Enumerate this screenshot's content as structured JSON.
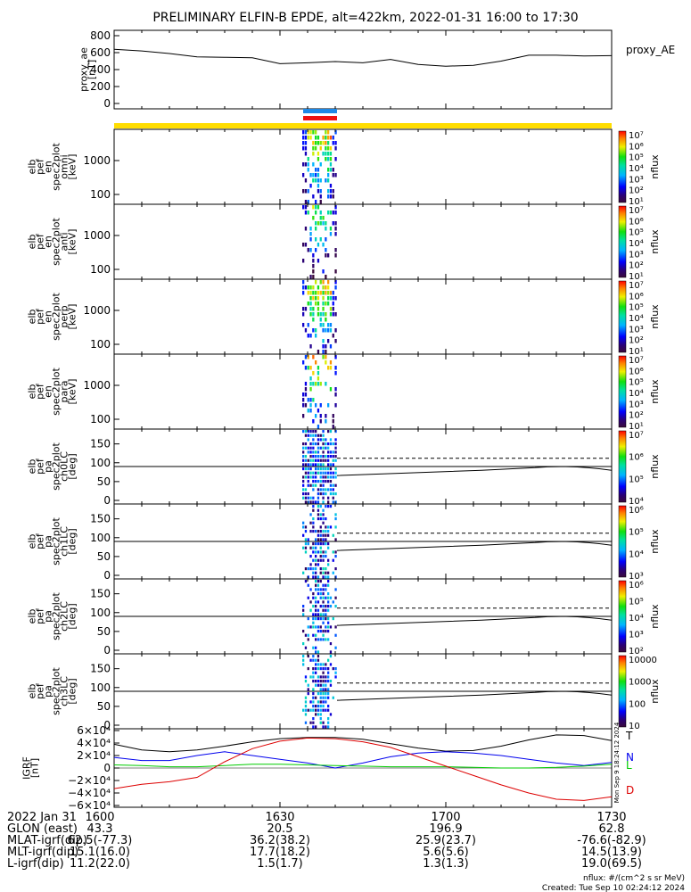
{
  "title": "PRELIMINARY ELFIN-B EPDE, alt=422km, 2022-01-31 16:00 to 17:30",
  "chart_data": [
    {
      "type": "line",
      "ylabel": [
        "proxy_ae",
        "[nT]"
      ],
      "legend": "proxy_AE",
      "ylim": [
        0,
        800
      ],
      "y_ticks": [
        "800",
        "600",
        "400",
        "200",
        "0"
      ],
      "x_minutes": [
        0,
        5,
        10,
        15,
        20,
        25,
        30,
        35,
        40,
        45,
        50,
        55,
        60,
        65,
        70,
        75,
        80,
        85,
        90
      ],
      "values": [
        640,
        620,
        590,
        550,
        545,
        540,
        470,
        480,
        495,
        480,
        520,
        460,
        440,
        450,
        500,
        570,
        570,
        560,
        565
      ]
    },
    {
      "type": "heatmap",
      "ylabel": [
        "elb",
        "pef",
        "en",
        "spec2plot",
        "omni",
        "[keV]"
      ],
      "y_scale": "log",
      "y_ticks": [
        "1000",
        "100"
      ],
      "colorbar_ticks": [
        "10^7",
        "10^6",
        "10^5",
        "10^4",
        "10^3",
        "10^2",
        "10^1"
      ],
      "colorbar_label": "nflux"
    },
    {
      "type": "heatmap",
      "ylabel": [
        "elb",
        "pef",
        "en",
        "spec2plot",
        "anti",
        "[keV]"
      ],
      "y_scale": "log",
      "y_ticks": [
        "1000",
        "100"
      ],
      "colorbar_ticks": [
        "10^7",
        "10^6",
        "10^5",
        "10^4",
        "10^3",
        "10^2",
        "10^1"
      ],
      "colorbar_label": "nflux"
    },
    {
      "type": "heatmap",
      "ylabel": [
        "elb",
        "pef",
        "en",
        "spec2plot",
        "perp",
        "[keV]"
      ],
      "y_scale": "log",
      "y_ticks": [
        "1000",
        "100"
      ],
      "colorbar_ticks": [
        "10^7",
        "10^6",
        "10^5",
        "10^4",
        "10^3",
        "10^2",
        "10^1"
      ],
      "colorbar_label": "nflux"
    },
    {
      "type": "heatmap",
      "ylabel": [
        "elb",
        "pef",
        "en",
        "spec2plot",
        "para",
        "[keV]"
      ],
      "y_scale": "log",
      "y_ticks": [
        "1000",
        "100"
      ],
      "colorbar_ticks": [
        "10^7",
        "10^6",
        "10^5",
        "10^4",
        "10^3",
        "10^2",
        "10^1"
      ],
      "colorbar_label": "nflux"
    },
    {
      "type": "heatmap",
      "ylabel": [
        "elb",
        "pef",
        "pa",
        "spec2plot",
        "ch0LC",
        "[deg]"
      ],
      "y_ticks": [
        "150",
        "100",
        "50",
        "0"
      ],
      "ylim": [
        0,
        180
      ],
      "colorbar_ticks": [
        "10^7",
        "10^6",
        "10^5",
        "10^4"
      ],
      "colorbar_label": "nflux"
    },
    {
      "type": "heatmap",
      "ylabel": [
        "elb",
        "pef",
        "pa",
        "spec2plot",
        "ch1LC",
        "[deg]"
      ],
      "y_ticks": [
        "150",
        "100",
        "50",
        "0"
      ],
      "ylim": [
        0,
        180
      ],
      "colorbar_ticks": [
        "10^6",
        "10^5",
        "10^4",
        "10^3"
      ],
      "colorbar_label": "nflux"
    },
    {
      "type": "heatmap",
      "ylabel": [
        "elb",
        "pef",
        "pa",
        "spec2plot",
        "ch2LC",
        "[deg]"
      ],
      "y_ticks": [
        "150",
        "100",
        "50",
        "0"
      ],
      "ylim": [
        0,
        180
      ],
      "colorbar_ticks": [
        "10^6",
        "10^5",
        "10^4",
        "10^3",
        "10^2"
      ],
      "colorbar_label": "nflux"
    },
    {
      "type": "heatmap",
      "ylabel": [
        "elb",
        "pef",
        "pa",
        "spec2plot",
        "ch3LC",
        "[deg]"
      ],
      "y_ticks": [
        "150",
        "100",
        "50",
        "0"
      ],
      "ylim": [
        0,
        180
      ],
      "colorbar_ticks": [
        "10000",
        "1000",
        "100",
        "10"
      ],
      "colorbar_label": "nflux"
    },
    {
      "type": "line",
      "ylabel": [
        "IGRF",
        "[nT]"
      ],
      "ylim": [
        -60000,
        60000
      ],
      "y_ticks": [
        "6×10⁴",
        "4×10⁴",
        "2×10⁴",
        "0",
        "−2×10⁴",
        "−4×10⁴",
        "−6×10⁴"
      ],
      "x_minutes": [
        0,
        5,
        10,
        15,
        20,
        25,
        30,
        35,
        40,
        45,
        50,
        55,
        60,
        65,
        70,
        75,
        80,
        85,
        90
      ],
      "series": [
        {
          "name": "T",
          "color": "#000000",
          "values": [
            38000,
            29000,
            26000,
            29000,
            35000,
            42000,
            47000,
            49000,
            49000,
            46000,
            39000,
            32000,
            27000,
            28000,
            35000,
            45000,
            53000,
            52000,
            44000
          ]
        },
        {
          "name": "N",
          "color": "#0000ee",
          "values": [
            17000,
            12000,
            12000,
            20000,
            26000,
            20000,
            14000,
            8000,
            0,
            8000,
            18000,
            24000,
            26000,
            24000,
            20000,
            14000,
            8000,
            4000,
            9000
          ]
        },
        {
          "name": "L",
          "color": "#00cc00",
          "values": [
            5000,
            4000,
            2000,
            2000,
            4000,
            6000,
            6000,
            5000,
            4000,
            3000,
            2000,
            2000,
            2000,
            1000,
            0,
            0,
            1000,
            3000,
            6000
          ]
        },
        {
          "name": "D",
          "color": "#dd0000",
          "values": [
            -33000,
            -26000,
            -22000,
            -15000,
            10000,
            31000,
            43000,
            48000,
            47000,
            42000,
            33000,
            18000,
            3000,
            -12000,
            -27000,
            -40000,
            -50000,
            -52000,
            -46000
          ]
        }
      ]
    }
  ],
  "x_ticks": {
    "row_labels": [
      "2022 Jan 31",
      "GLON (east)",
      "MLAT-igrf(dip)",
      "MLT-igrf(dip)",
      "L-igrf(dip)"
    ],
    "columns": [
      [
        "1600",
        "43.3",
        "62.5(-77.3)",
        "15.1(16.0)",
        "11.2(22.0)"
      ],
      [
        "1630",
        "20.5",
        "36.2(38.2)",
        "17.7(18.2)",
        "1.5(1.7)"
      ],
      [
        "1700",
        "196.9",
        "25.9(23.7)",
        "5.6(5.6)",
        "1.3(1.3)"
      ],
      [
        "1730",
        "62.8",
        "-76.6(-82.9)",
        "14.5(13.9)",
        "19.0(69.5)"
      ]
    ]
  },
  "footer": {
    "units": "nflux: #/(cm^2 s sr MeV)",
    "created": "Created: Tue Sep 10 02:24:12 2024",
    "vertical_stamp": "Mon Sep 9 18:24:12 2024"
  },
  "colors": {
    "bar_yellow": "#ffdd00",
    "bar_blue": "#1e88e5",
    "bar_red": "#ee1111"
  }
}
